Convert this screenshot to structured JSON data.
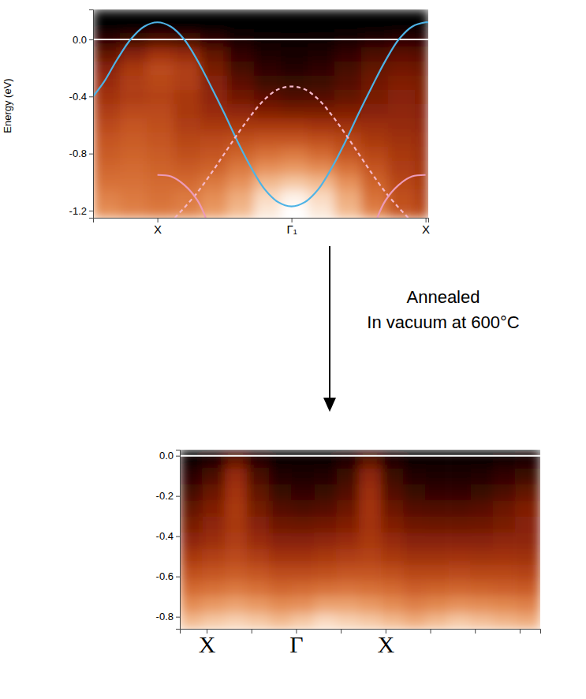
{
  "chart_data": [
    {
      "type": "heatmap",
      "y_label": "Energy (eV)",
      "xlim": [
        -1.48,
        1.02
      ],
      "ylim": [
        -1.25,
        0.21
      ],
      "xticks": [
        {
          "value": -1,
          "label": "X"
        },
        {
          "value": 0,
          "label": "Γ₁"
        },
        {
          "value": 1,
          "label": "X"
        }
      ],
      "yticks": [
        {
          "value": 0,
          "label": "0.0"
        },
        -0.4,
        -0.8,
        -1.2
      ],
      "reference_lines": [
        0
      ],
      "heatmap": {
        "xbins": [
          -1.48,
          -1.28,
          -1.08,
          -0.88,
          -0.68,
          -0.48,
          -0.28,
          -0.08,
          0.12,
          0.32,
          0.52,
          0.72,
          0.92,
          1.02
        ],
        "ybins": [
          -1.25,
          -1.15,
          -1.05,
          -0.95,
          -0.85,
          -0.75,
          -0.65,
          -0.55,
          -0.45,
          -0.35,
          -0.25,
          -0.15,
          -0.05,
          0.05,
          0.15,
          0.21
        ],
        "zlim": [
          0,
          1
        ],
        "z": [
          [
            0.75,
            0.72,
            0.7,
            0.72,
            0.78,
            0.85,
            0.95,
            1.0,
            0.95,
            0.85,
            0.72,
            0.6,
            0.55
          ],
          [
            0.72,
            0.7,
            0.68,
            0.7,
            0.75,
            0.82,
            0.92,
            0.97,
            0.92,
            0.82,
            0.68,
            0.58,
            0.52
          ],
          [
            0.68,
            0.68,
            0.66,
            0.66,
            0.7,
            0.76,
            0.85,
            0.88,
            0.85,
            0.76,
            0.64,
            0.55,
            0.5
          ],
          [
            0.65,
            0.66,
            0.64,
            0.62,
            0.64,
            0.7,
            0.76,
            0.78,
            0.75,
            0.68,
            0.6,
            0.52,
            0.48
          ],
          [
            0.62,
            0.64,
            0.62,
            0.58,
            0.6,
            0.64,
            0.68,
            0.7,
            0.66,
            0.6,
            0.55,
            0.5,
            0.46
          ],
          [
            0.6,
            0.62,
            0.6,
            0.55,
            0.56,
            0.58,
            0.6,
            0.6,
            0.58,
            0.55,
            0.5,
            0.47,
            0.45
          ],
          [
            0.56,
            0.6,
            0.58,
            0.52,
            0.5,
            0.5,
            0.5,
            0.5,
            0.48,
            0.47,
            0.46,
            0.44,
            0.42
          ],
          [
            0.52,
            0.56,
            0.56,
            0.5,
            0.45,
            0.42,
            0.38,
            0.36,
            0.36,
            0.38,
            0.4,
            0.42,
            0.4
          ],
          [
            0.48,
            0.52,
            0.54,
            0.5,
            0.42,
            0.34,
            0.28,
            0.25,
            0.26,
            0.3,
            0.36,
            0.4,
            0.38
          ],
          [
            0.45,
            0.52,
            0.55,
            0.52,
            0.4,
            0.28,
            0.2,
            0.18,
            0.2,
            0.26,
            0.34,
            0.38,
            0.36
          ],
          [
            0.4,
            0.5,
            0.56,
            0.52,
            0.36,
            0.22,
            0.15,
            0.12,
            0.15,
            0.22,
            0.3,
            0.34,
            0.32
          ],
          [
            0.3,
            0.4,
            0.48,
            0.44,
            0.3,
            0.16,
            0.1,
            0.08,
            0.1,
            0.16,
            0.24,
            0.28,
            0.26
          ],
          [
            0.15,
            0.2,
            0.25,
            0.22,
            0.15,
            0.08,
            0.05,
            0.04,
            0.05,
            0.08,
            0.12,
            0.14,
            0.13
          ],
          [
            0,
            0,
            0,
            0,
            0,
            0,
            0,
            0,
            0,
            0,
            0,
            0,
            0
          ],
          [
            0,
            0,
            0,
            0,
            0,
            0,
            0,
            0,
            0,
            0,
            0,
            0,
            0
          ]
        ]
      },
      "series": [
        {
          "type": "line",
          "color": "#4db3e6",
          "line_style": "solid",
          "x": [
            -1.48,
            -1.4,
            -1.3,
            -1.2,
            -1.1,
            -1.0,
            -0.9,
            -0.8,
            -0.7,
            -0.6,
            -0.5,
            -0.4,
            -0.3,
            -0.2,
            -0.1,
            0,
            0.1,
            0.2,
            0.3,
            0.4,
            0.5,
            0.6,
            0.7,
            0.8,
            0.9,
            1.0,
            1.02
          ],
          "values": [
            -0.4,
            -0.3,
            -0.14,
            0.0,
            0.09,
            0.12,
            0.09,
            0.0,
            -0.15,
            -0.33,
            -0.52,
            -0.72,
            -0.9,
            -1.05,
            -1.14,
            -1.17,
            -1.14,
            -1.05,
            -0.9,
            -0.72,
            -0.52,
            -0.33,
            -0.15,
            0.0,
            0.09,
            0.12,
            0.12
          ]
        },
        {
          "type": "line",
          "color": "#f5b8c9",
          "line_style": "dashed",
          "x": [
            -0.87,
            -0.8,
            -0.7,
            -0.6,
            -0.5,
            -0.4,
            -0.3,
            -0.2,
            -0.1,
            0,
            0.1,
            0.2,
            0.3,
            0.4,
            0.5,
            0.6,
            0.7,
            0.8,
            0.87
          ],
          "values": [
            -1.25,
            -1.18,
            -1.07,
            -0.94,
            -0.8,
            -0.66,
            -0.53,
            -0.42,
            -0.35,
            -0.33,
            -0.35,
            -0.42,
            -0.53,
            -0.66,
            -0.8,
            -0.94,
            -1.07,
            -1.18,
            -1.25
          ]
        },
        {
          "type": "line",
          "color": "#ec9bb9",
          "line_style": "solid",
          "x": [
            -1.0,
            -0.9,
            -0.8,
            -0.7,
            -0.64
          ],
          "values": [
            -0.95,
            -0.96,
            -1.02,
            -1.13,
            -1.25
          ]
        },
        {
          "type": "line",
          "color": "#ec9bb9",
          "line_style": "solid",
          "x": [
            0.64,
            0.7,
            0.8,
            0.9,
            1.0
          ],
          "values": [
            -1.25,
            -1.13,
            -1.02,
            -0.96,
            -0.95
          ]
        }
      ]
    },
    {
      "type": "heatmap",
      "xlim": [
        -1.3,
        2.73
      ],
      "ylim": [
        -0.86,
        0.03
      ],
      "xticks": [
        {
          "value": -1,
          "label": "X"
        },
        {
          "value": -0.5,
          "label": null
        },
        {
          "value": 0,
          "label": "Γ"
        },
        {
          "value": 0.5,
          "label": null
        },
        {
          "value": 1,
          "label": "X"
        },
        {
          "value": 1.5,
          "label": null
        },
        {
          "value": 2,
          "label": null
        },
        {
          "value": 2.5,
          "label": null
        }
      ],
      "yticks": [
        {
          "value": 0,
          "label": "0.0"
        },
        -0.2,
        -0.4,
        -0.6,
        -0.8
      ],
      "reference_lines": [
        0
      ],
      "heatmap": {
        "xbins": [
          -1.3,
          -1.05,
          -0.8,
          -0.55,
          -0.3,
          -0.05,
          0.2,
          0.45,
          0.7,
          0.95,
          1.2,
          1.45,
          1.7,
          1.95,
          2.2,
          2.45,
          2.73
        ],
        "ybins": [
          -0.86,
          -0.78,
          -0.7,
          -0.62,
          -0.54,
          -0.46,
          -0.38,
          -0.3,
          -0.22,
          -0.14,
          -0.06,
          0.0,
          0.03
        ],
        "zlim": [
          0,
          1
        ],
        "z": [
          [
            0.85,
            0.88,
            0.9,
            0.88,
            0.85,
            0.88,
            0.92,
            0.9,
            0.88,
            0.85,
            0.82,
            0.85,
            0.88,
            0.86,
            0.84,
            0.82
          ],
          [
            0.75,
            0.78,
            0.8,
            0.78,
            0.75,
            0.76,
            0.8,
            0.8,
            0.78,
            0.75,
            0.72,
            0.74,
            0.76,
            0.75,
            0.74,
            0.72
          ],
          [
            0.66,
            0.68,
            0.7,
            0.68,
            0.65,
            0.66,
            0.68,
            0.69,
            0.68,
            0.66,
            0.63,
            0.64,
            0.65,
            0.64,
            0.63,
            0.62
          ],
          [
            0.58,
            0.6,
            0.62,
            0.6,
            0.57,
            0.57,
            0.58,
            0.6,
            0.6,
            0.58,
            0.55,
            0.55,
            0.56,
            0.55,
            0.55,
            0.54
          ],
          [
            0.5,
            0.53,
            0.56,
            0.52,
            0.48,
            0.48,
            0.5,
            0.52,
            0.54,
            0.5,
            0.47,
            0.47,
            0.48,
            0.47,
            0.48,
            0.47
          ],
          [
            0.42,
            0.46,
            0.52,
            0.45,
            0.4,
            0.4,
            0.42,
            0.45,
            0.5,
            0.44,
            0.4,
            0.4,
            0.4,
            0.4,
            0.42,
            0.42
          ],
          [
            0.36,
            0.42,
            0.5,
            0.4,
            0.33,
            0.32,
            0.34,
            0.38,
            0.48,
            0.38,
            0.33,
            0.32,
            0.32,
            0.33,
            0.36,
            0.4
          ],
          [
            0.3,
            0.38,
            0.5,
            0.35,
            0.26,
            0.24,
            0.26,
            0.32,
            0.48,
            0.32,
            0.26,
            0.25,
            0.25,
            0.27,
            0.32,
            0.38
          ],
          [
            0.22,
            0.32,
            0.48,
            0.3,
            0.18,
            0.16,
            0.18,
            0.26,
            0.46,
            0.26,
            0.18,
            0.16,
            0.16,
            0.18,
            0.24,
            0.3
          ],
          [
            0.14,
            0.24,
            0.44,
            0.24,
            0.12,
            0.1,
            0.12,
            0.2,
            0.42,
            0.2,
            0.12,
            0.1,
            0.1,
            0.12,
            0.16,
            0.2
          ],
          [
            0.06,
            0.12,
            0.32,
            0.14,
            0.06,
            0.05,
            0.06,
            0.12,
            0.3,
            0.12,
            0.06,
            0.05,
            0.05,
            0.06,
            0.08,
            0.1
          ],
          [
            0,
            0,
            0,
            0,
            0,
            0,
            0,
            0,
            0,
            0,
            0,
            0,
            0,
            0,
            0,
            0
          ]
        ]
      }
    }
  ],
  "annotation": [
    "Annealed",
    "In vacuum at 600°C"
  ]
}
